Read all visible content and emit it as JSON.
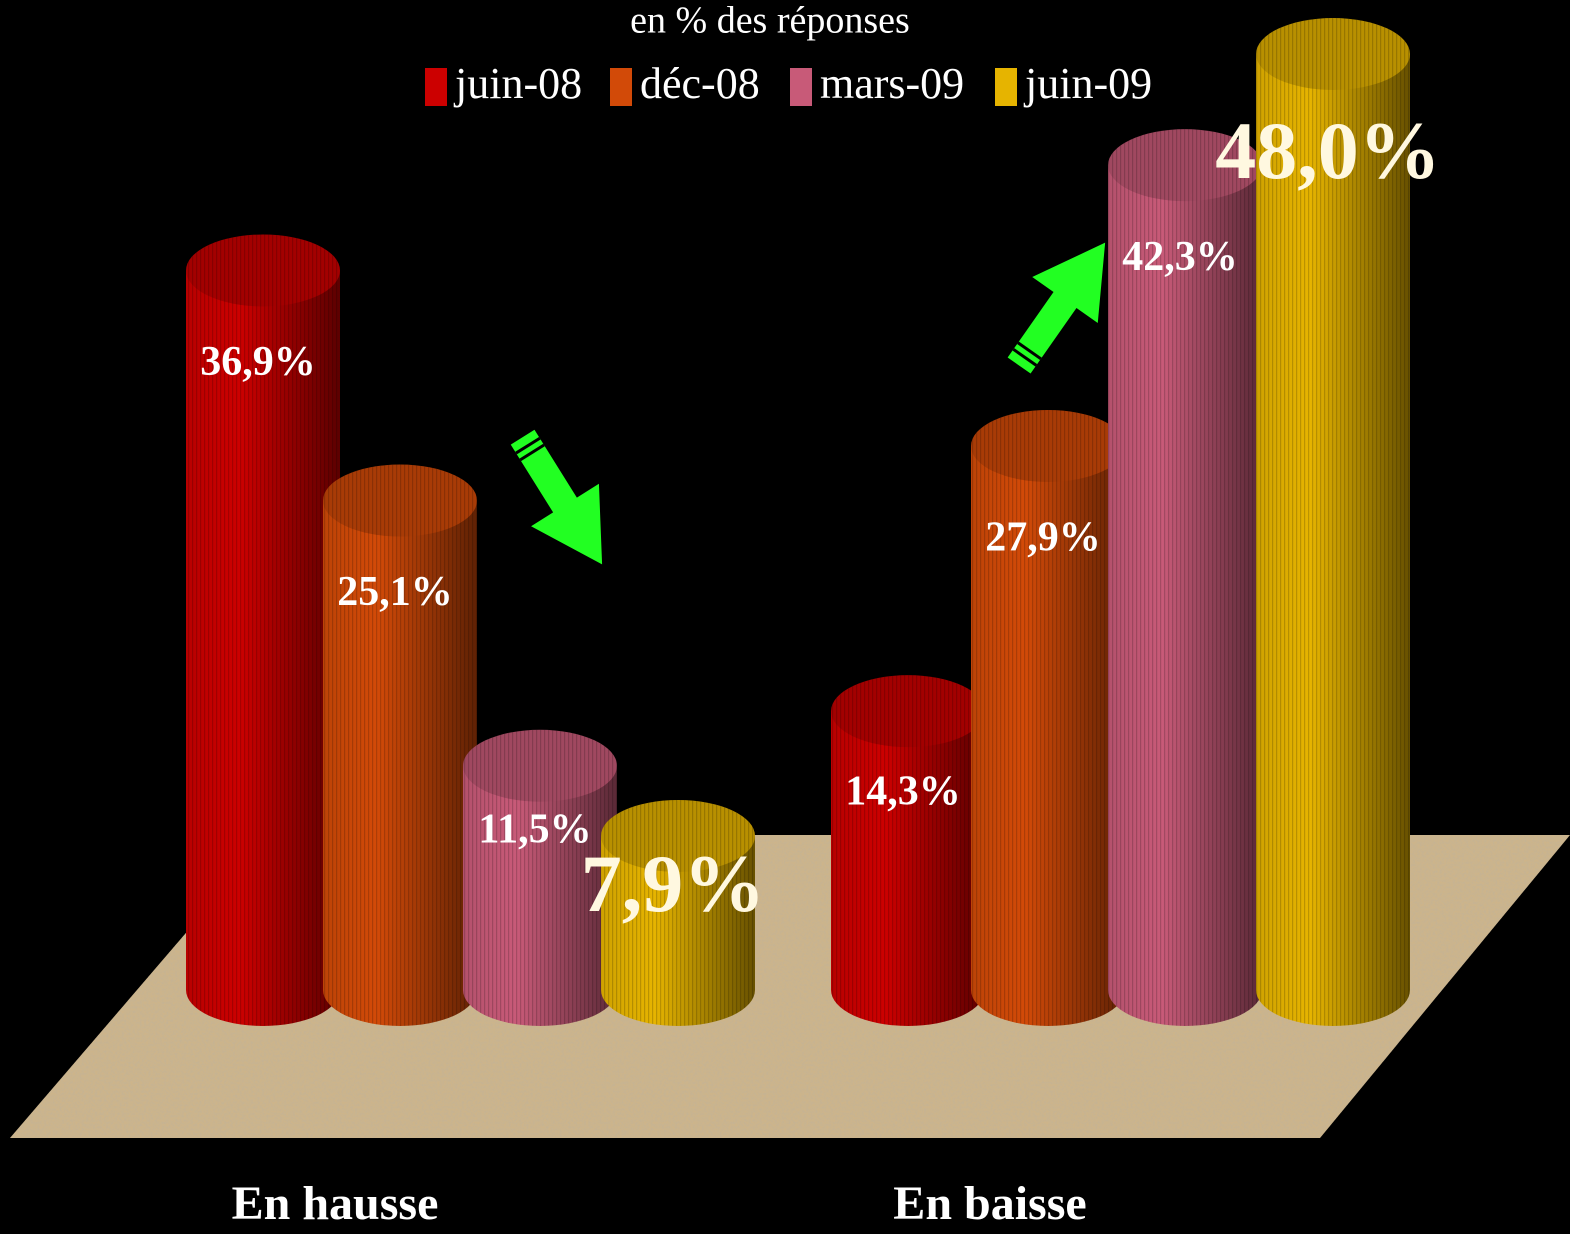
{
  "chart_data": {
    "type": "cylinder-bar",
    "subtitle": "en % des réponses",
    "categories": [
      "En hausse",
      "En baisse"
    ],
    "series": [
      {
        "name": "juin-08",
        "color": "#cc0000",
        "values": [
          36.9,
          14.3
        ],
        "value_labels": [
          "36,9%",
          "14,3%"
        ]
      },
      {
        "name": "déc-08",
        "color": "#d24a08",
        "values": [
          25.1,
          27.9
        ],
        "value_labels": [
          "25,1%",
          "27,9%"
        ]
      },
      {
        "name": "mars-09",
        "color": "#c85a78",
        "values": [
          11.5,
          42.3
        ],
        "value_labels": [
          "11,5%",
          "42,3%"
        ]
      },
      {
        "name": "juin-09",
        "color": "#e6b400",
        "values": [
          7.9,
          48.0
        ],
        "value_labels": [
          "7,9%",
          "48,0%"
        ]
      }
    ]
  }
}
